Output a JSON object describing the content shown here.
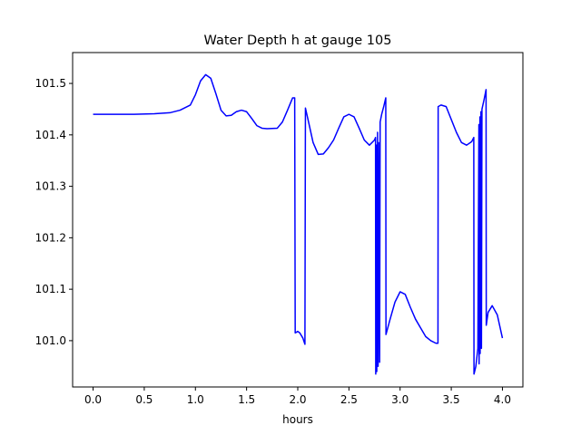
{
  "chart_data": {
    "type": "line",
    "title": "Water Depth h at gauge 105",
    "xlabel": "hours",
    "ylabel": "",
    "xlim": [
      -0.2,
      4.2
    ],
    "ylim": [
      100.91,
      101.56
    ],
    "xticks": [
      0.0,
      0.5,
      1.0,
      1.5,
      2.0,
      2.5,
      3.0,
      3.5,
      4.0
    ],
    "xtick_labels": [
      "0.0",
      "0.5",
      "1.0",
      "1.5",
      "2.0",
      "2.5",
      "3.0",
      "3.5",
      "4.0"
    ],
    "yticks": [
      101.0,
      101.1,
      101.2,
      101.3,
      101.4,
      101.5
    ],
    "ytick_labels": [
      "101.0",
      "101.1",
      "101.2",
      "101.3",
      "101.4",
      "101.5"
    ],
    "grid": false,
    "series": [
      {
        "name": "",
        "color": "#0000ff",
        "x": [
          0.0,
          0.2,
          0.4,
          0.6,
          0.75,
          0.85,
          0.95,
          1.0,
          1.05,
          1.1,
          1.15,
          1.2,
          1.25,
          1.3,
          1.35,
          1.4,
          1.45,
          1.5,
          1.55,
          1.6,
          1.65,
          1.7,
          1.8,
          1.85,
          1.9,
          1.95,
          1.97,
          1.975,
          2.0,
          2.02,
          2.05,
          2.07,
          2.075,
          2.1,
          2.15,
          2.2,
          2.25,
          2.3,
          2.35,
          2.4,
          2.45,
          2.5,
          2.55,
          2.6,
          2.65,
          2.7,
          2.75,
          2.76,
          2.762,
          2.77,
          2.772,
          2.78,
          2.785,
          2.79,
          2.8,
          2.805,
          2.82,
          2.84,
          2.86,
          2.862,
          2.9,
          2.95,
          3.0,
          3.05,
          3.1,
          3.15,
          3.2,
          3.25,
          3.3,
          3.35,
          3.37,
          3.372,
          3.4,
          3.45,
          3.5,
          3.55,
          3.6,
          3.65,
          3.7,
          3.72,
          3.722,
          3.74,
          3.76,
          3.77,
          3.772,
          3.78,
          3.782,
          3.79,
          3.795,
          3.8,
          3.82,
          3.84,
          3.842,
          3.86,
          3.9,
          3.95,
          4.0
        ],
        "y": [
          101.44,
          101.44,
          101.44,
          101.441,
          101.443,
          101.448,
          101.458,
          101.478,
          101.505,
          101.517,
          101.51,
          101.48,
          101.448,
          101.437,
          101.438,
          101.445,
          101.448,
          101.445,
          101.432,
          101.418,
          101.413,
          101.412,
          101.413,
          101.425,
          101.448,
          101.472,
          101.472,
          101.015,
          101.018,
          101.015,
          101.005,
          100.993,
          101.452,
          101.43,
          101.385,
          101.362,
          101.363,
          101.375,
          101.39,
          101.413,
          101.435,
          101.44,
          101.435,
          101.413,
          101.39,
          101.38,
          101.39,
          101.395,
          100.935,
          101.38,
          100.94,
          101.405,
          100.95,
          101.385,
          100.958,
          101.425,
          101.44,
          101.455,
          101.472,
          101.012,
          101.04,
          101.075,
          101.095,
          101.09,
          101.065,
          101.042,
          101.025,
          101.008,
          101.0,
          100.995,
          100.995,
          101.455,
          101.458,
          101.455,
          101.43,
          101.405,
          101.385,
          101.38,
          101.387,
          101.395,
          100.935,
          100.95,
          100.985,
          101.42,
          100.955,
          101.435,
          100.975,
          101.445,
          100.985,
          101.45,
          101.468,
          101.488,
          101.03,
          101.055,
          101.068,
          101.05,
          101.005
        ]
      }
    ]
  }
}
